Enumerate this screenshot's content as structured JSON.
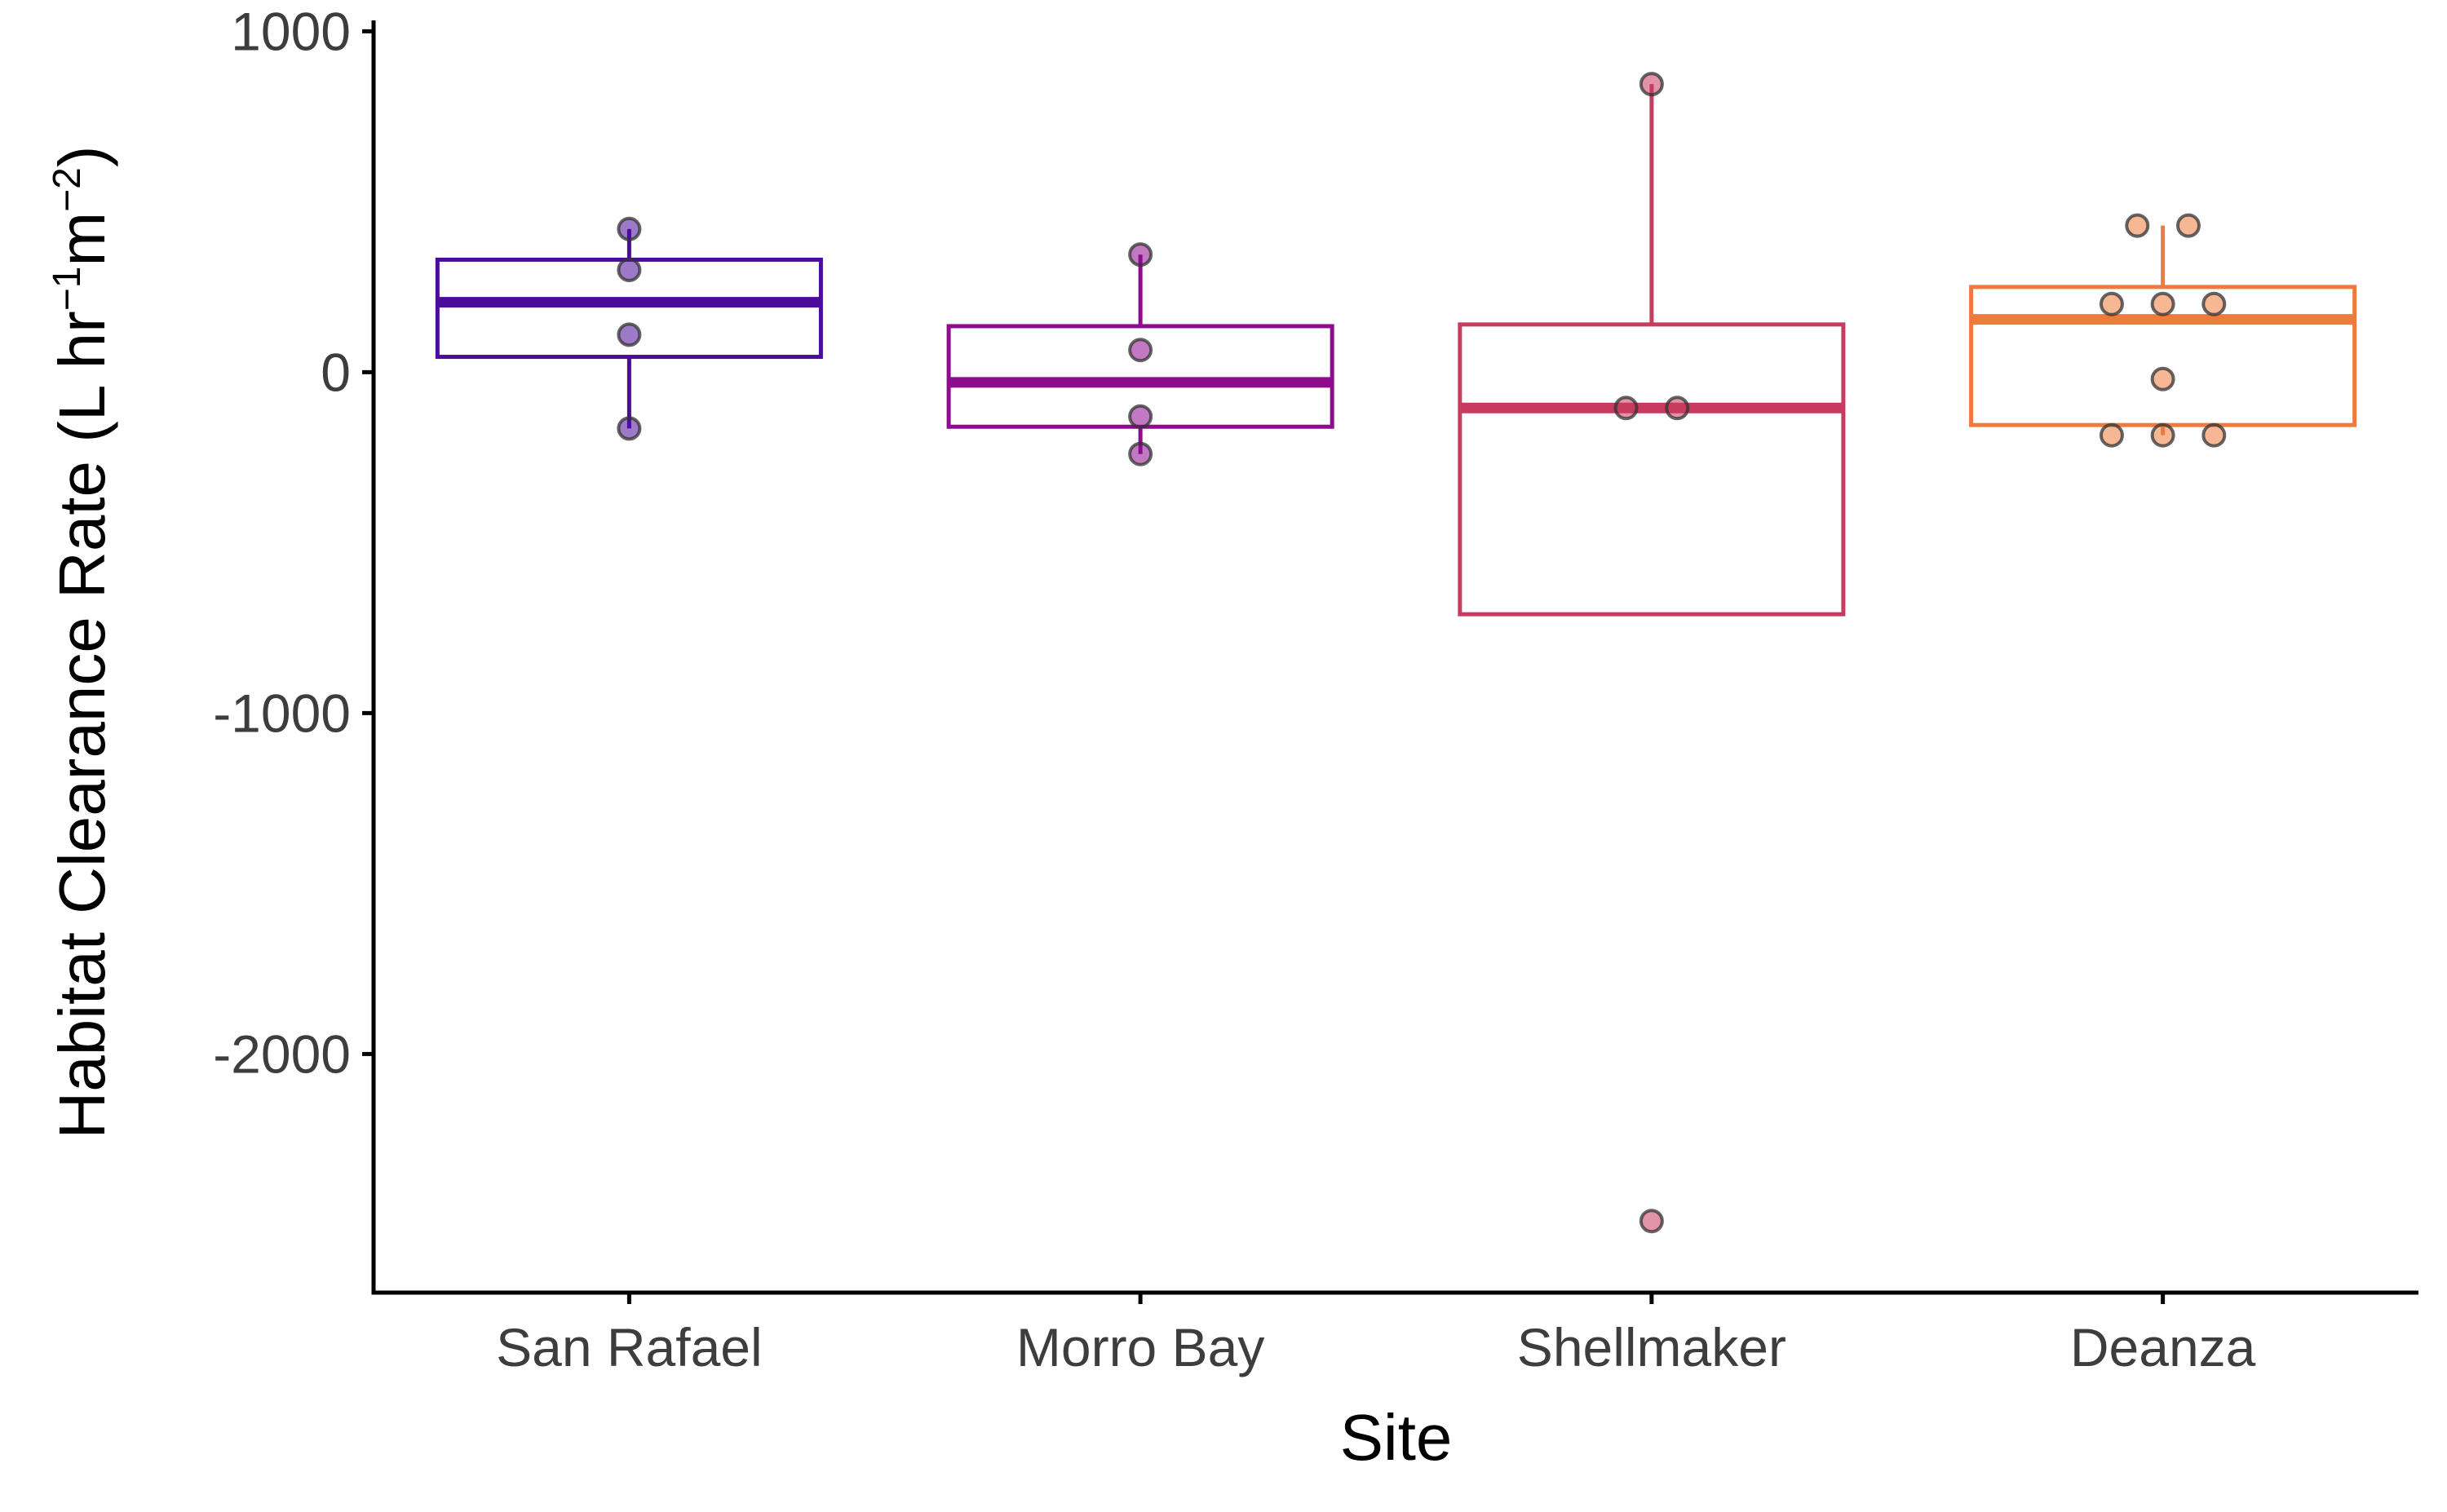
{
  "chart_data": {
    "type": "box",
    "xlabel": "Site",
    "ylabel_parts": [
      "Habitat Clearance Rate (L hr",
      "−1",
      "m",
      "−2",
      ")"
    ],
    "ylim": [
      -2700,
      1020
    ],
    "yticks": [
      1000,
      0,
      -1000,
      -2000
    ],
    "ytick_labels": [
      "1000",
      "0",
      "-1000",
      "-2000"
    ],
    "grid": false,
    "legend": "none",
    "categories": [
      "San Rafael",
      "Morro Bay",
      "Shellmaker",
      "Deanza"
    ],
    "boxes": [
      {
        "site": "San Rafael",
        "color": "#4B0C9A",
        "q1": 45,
        "median": 205,
        "q3": 330,
        "whisker_low": -165,
        "whisker_high": 420,
        "points": [
          {
            "y": 420,
            "dx": 0
          },
          {
            "y": 300,
            "dx": 0
          },
          {
            "y": 110,
            "dx": 0
          },
          {
            "y": -165,
            "dx": 0
          }
        ]
      },
      {
        "site": "Morro Bay",
        "color": "#8E0B8E",
        "q1": -160,
        "median": -30,
        "q3": 135,
        "whisker_low": -240,
        "whisker_high": 345,
        "points": [
          {
            "y": 345,
            "dx": 0
          },
          {
            "y": 65,
            "dx": 0
          },
          {
            "y": -130,
            "dx": 0
          },
          {
            "y": -240,
            "dx": 0
          }
        ]
      },
      {
        "site": "Shellmaker",
        "color": "#C83A5E",
        "q1": -710,
        "median": -105,
        "q3": 140,
        "whisker_low": -710,
        "whisker_high": 845,
        "points": [
          {
            "y": 845,
            "dx": 0
          },
          {
            "y": -105,
            "dx": -0.05
          },
          {
            "y": -105,
            "dx": 0.05
          },
          {
            "y": -2490,
            "dx": 0
          }
        ]
      },
      {
        "site": "Deanza",
        "color": "#EE7B3E",
        "q1": -155,
        "median": 155,
        "q3": 250,
        "whisker_low": -185,
        "whisker_high": 430,
        "points": [
          {
            "y": 430,
            "dx": -0.05
          },
          {
            "y": 430,
            "dx": 0.05
          },
          {
            "y": 200,
            "dx": -0.1
          },
          {
            "y": 200,
            "dx": 0
          },
          {
            "y": 200,
            "dx": 0.1
          },
          {
            "y": -20,
            "dx": 0
          },
          {
            "y": -185,
            "dx": -0.1
          },
          {
            "y": -185,
            "dx": 0
          },
          {
            "y": -185,
            "dx": 0.1
          }
        ]
      }
    ]
  }
}
